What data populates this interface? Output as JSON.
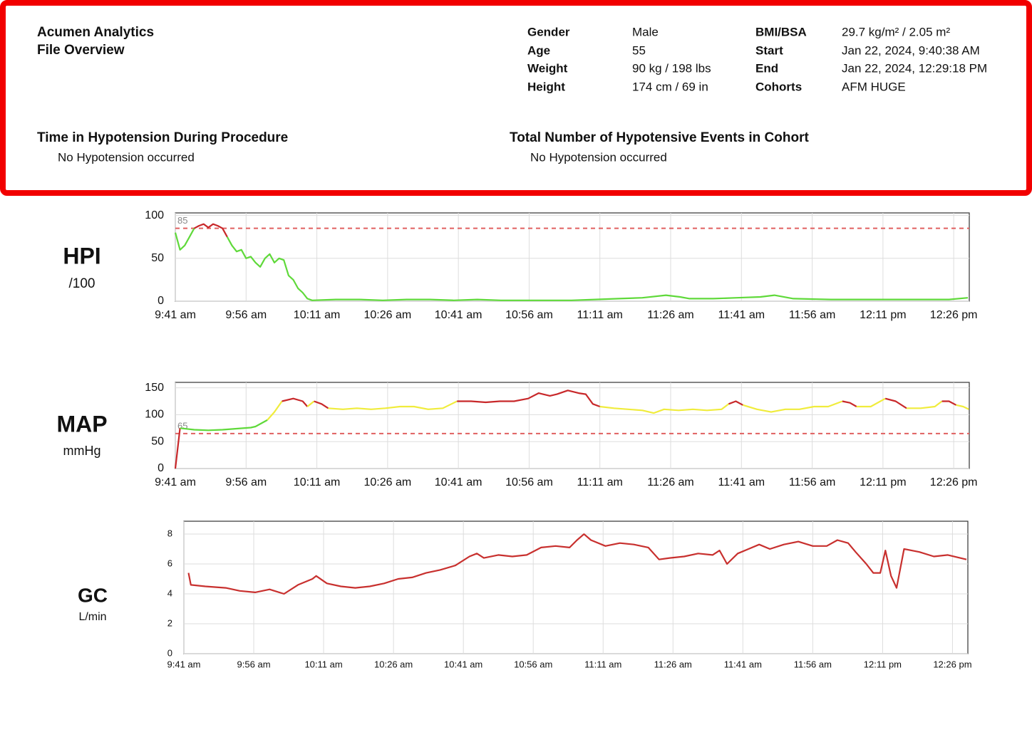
{
  "header": {
    "title": "Acumen Analytics",
    "subtitle": "File Overview",
    "info": [
      {
        "label": "Gender",
        "value": "Male"
      },
      {
        "label": "Age",
        "value": "55"
      },
      {
        "label": "Weight",
        "value": "90 kg / 198 lbs"
      },
      {
        "label": "Height",
        "value": "174 cm / 69 in"
      },
      {
        "label": "BMI/BSA",
        "value": "29.7 kg/m² / 2.05 m²"
      },
      {
        "label": "Start",
        "value": "Jan 22, 2024, 9:40:38 AM"
      },
      {
        "label": "End",
        "value": "Jan 22, 2024, 12:29:18 PM"
      },
      {
        "label": "Cohorts",
        "value": "AFM HUGE"
      }
    ],
    "sections": [
      {
        "title": "Time in Hypotension During Procedure",
        "text": "No Hypotension occurred"
      },
      {
        "title": "Total Number of Hypotensive Events in Cohort",
        "text": "No Hypotension occurred"
      }
    ]
  },
  "chart_data": [
    {
      "type": "line",
      "title": "HPI",
      "unit": "/100",
      "reference": 85,
      "grid": true,
      "xlim": [
        581,
        749.3
      ],
      "ylim": [
        0,
        103
      ],
      "yticks": [
        0,
        50,
        100
      ],
      "xticks": [
        {
          "value": 581,
          "label": "9:41 am"
        },
        {
          "value": 596,
          "label": "9:56 am"
        },
        {
          "value": 611,
          "label": "10:11 am"
        },
        {
          "value": 626,
          "label": "10:26 am"
        },
        {
          "value": 641,
          "label": "10:41 am"
        },
        {
          "value": 656,
          "label": "10:56 am"
        },
        {
          "value": 671,
          "label": "11:11 am"
        },
        {
          "value": 686,
          "label": "11:26 am"
        },
        {
          "value": 701,
          "label": "11:41 am"
        },
        {
          "value": 716,
          "label": "11:56 am"
        },
        {
          "value": 731,
          "label": "12:11 pm"
        },
        {
          "value": 746,
          "label": "12:26 pm"
        }
      ],
      "color_bands": [
        {
          "below": 85,
          "color": "#5fd93a"
        },
        {
          "color": "#c8282a"
        }
      ],
      "x": [
        581,
        582,
        583,
        584,
        585,
        586,
        587,
        588,
        589,
        590,
        591,
        592,
        593,
        594,
        595,
        596,
        597,
        598,
        599,
        600,
        601,
        602,
        603,
        604,
        605,
        606,
        607,
        608,
        609,
        610,
        615,
        620,
        625,
        630,
        635,
        640,
        645,
        650,
        655,
        660,
        665,
        670,
        675,
        680,
        685,
        688,
        690,
        695,
        700,
        705,
        708,
        712,
        720,
        730,
        740,
        745,
        749
      ],
      "values": [
        80,
        60,
        65,
        75,
        85,
        88,
        90,
        86,
        90,
        88,
        85,
        75,
        65,
        58,
        60,
        50,
        52,
        45,
        40,
        50,
        55,
        45,
        50,
        48,
        30,
        25,
        15,
        10,
        3,
        1,
        2,
        2,
        1,
        2,
        2,
        1,
        2,
        1,
        1,
        1,
        1,
        2,
        3,
        4,
        7,
        5,
        3,
        3,
        4,
        5,
        7,
        3,
        2,
        2,
        2,
        2,
        4
      ]
    },
    {
      "type": "line",
      "title": "MAP",
      "unit": "mmHg",
      "reference": 65,
      "grid": true,
      "xlim": [
        581,
        749.3
      ],
      "ylim": [
        0,
        160
      ],
      "yticks": [
        0,
        50,
        100,
        150
      ],
      "xticks": [
        {
          "value": 581,
          "label": "9:41 am"
        },
        {
          "value": 596,
          "label": "9:56 am"
        },
        {
          "value": 611,
          "label": "10:11 am"
        },
        {
          "value": 626,
          "label": "10:26 am"
        },
        {
          "value": 641,
          "label": "10:41 am"
        },
        {
          "value": 656,
          "label": "10:56 am"
        },
        {
          "value": 671,
          "label": "11:11 am"
        },
        {
          "value": 686,
          "label": "11:26 am"
        },
        {
          "value": 701,
          "label": "11:41 am"
        },
        {
          "value": 716,
          "label": "11:56 am"
        },
        {
          "value": 731,
          "label": "12:11 pm"
        },
        {
          "value": 746,
          "label": "12:26 pm"
        }
      ],
      "color_bands": [
        {
          "below": 65,
          "color": "#c8282a"
        },
        {
          "below": 90,
          "color": "#5fd93a"
        },
        {
          "below": 120,
          "color": "#f0ec3c"
        },
        {
          "color": "#c8282a"
        }
      ],
      "x": [
        581,
        582,
        585,
        588,
        591,
        594,
        597,
        598,
        600.5,
        602,
        603.6,
        606,
        608,
        609,
        610.4,
        612,
        613.4,
        616.5,
        619.5,
        622.5,
        625.5,
        628.6,
        631.6,
        634.6,
        637.7,
        640.7,
        643.7,
        646.8,
        649.8,
        652.8,
        655.8,
        658,
        660.4,
        661.9,
        664.2,
        666.5,
        668,
        669.5,
        671,
        674,
        677,
        680,
        682.4,
        684.6,
        687.7,
        690.7,
        693.7,
        696.8,
        698.3,
        699.8,
        701.3,
        704.3,
        707.3,
        710.3,
        713.3,
        716.4,
        719.4,
        722.4,
        724,
        725.4,
        728.4,
        731.5,
        733.7,
        736,
        739,
        742,
        743.5,
        745,
        746.5,
        748,
        749.2
      ],
      "values": [
        0,
        75,
        72,
        71,
        72,
        74,
        76,
        78,
        90,
        105,
        125,
        130,
        125,
        115,
        125,
        120,
        112,
        110,
        112,
        110,
        112,
        115,
        115,
        110,
        112,
        125,
        125,
        123,
        125,
        125,
        130,
        140,
        135,
        138,
        145,
        140,
        138,
        120,
        115,
        112,
        110,
        108,
        103,
        110,
        108,
        110,
        108,
        110,
        120,
        125,
        118,
        110,
        105,
        110,
        110,
        115,
        115,
        125,
        122,
        115,
        115,
        130,
        125,
        112,
        112,
        115,
        125,
        125,
        118,
        115,
        110
      ]
    },
    {
      "type": "line",
      "title": "GC",
      "unit": "L/min",
      "grid": true,
      "xlim": [
        581,
        749.3
      ],
      "ylim": [
        0,
        8.86
      ],
      "yticks": [
        0,
        2,
        4,
        6,
        8
      ],
      "xticks": [
        {
          "value": 581,
          "label": "9:41 am"
        },
        {
          "value": 596,
          "label": "9:56 am"
        },
        {
          "value": 611,
          "label": "10:11 am"
        },
        {
          "value": 626,
          "label": "10:26 am"
        },
        {
          "value": 641,
          "label": "10:41 am"
        },
        {
          "value": 656,
          "label": "10:56 am"
        },
        {
          "value": 671,
          "label": "11:11 am"
        },
        {
          "value": 686,
          "label": "11:26 am"
        },
        {
          "value": 701,
          "label": "11:41 am"
        },
        {
          "value": 716,
          "label": "11:56 am"
        },
        {
          "value": 731,
          "label": "12:11 pm"
        },
        {
          "value": 746,
          "label": "12:26 pm"
        }
      ],
      "color_bands": [
        {
          "color": "#c8302e"
        }
      ],
      "x": [
        582,
        582.5,
        585.6,
        590,
        593,
        596.3,
        599.4,
        602.5,
        605.5,
        608.6,
        609.4,
        611.7,
        614.7,
        617.8,
        620.9,
        624,
        627,
        630,
        633,
        636,
        639.3,
        642.3,
        643.9,
        645.4,
        648.5,
        651.5,
        654.6,
        657.7,
        660.8,
        663.8,
        665.4,
        666.9,
        668.4,
        671.5,
        674.6,
        677.6,
        680.7,
        683,
        685.3,
        688.4,
        691.4,
        694.5,
        696,
        697.6,
        699.9,
        702.2,
        704.5,
        706.8,
        709.8,
        712.9,
        716,
        719,
        721.3,
        723.6,
        725.2,
        727.5,
        729,
        730.5,
        731.6,
        732.8,
        734,
        735.6,
        738.9,
        742,
        745,
        749
      ],
      "values": [
        5.4,
        4.6,
        4.5,
        4.4,
        4.2,
        4.1,
        4.3,
        4.0,
        4.6,
        5.0,
        5.2,
        4.7,
        4.5,
        4.4,
        4.5,
        4.7,
        5.0,
        5.1,
        5.4,
        5.6,
        5.9,
        6.5,
        6.7,
        6.4,
        6.6,
        6.5,
        6.6,
        7.1,
        7.2,
        7.1,
        7.6,
        8.0,
        7.6,
        7.2,
        7.4,
        7.3,
        7.1,
        6.3,
        6.4,
        6.5,
        6.7,
        6.6,
        6.9,
        6.0,
        6.7,
        7.0,
        7.3,
        7.0,
        7.3,
        7.5,
        7.2,
        7.2,
        7.6,
        7.4,
        6.8,
        6.0,
        5.4,
        5.4,
        6.9,
        5.2,
        4.4,
        7.0,
        6.8,
        6.5,
        6.6,
        6.3
      ]
    }
  ]
}
